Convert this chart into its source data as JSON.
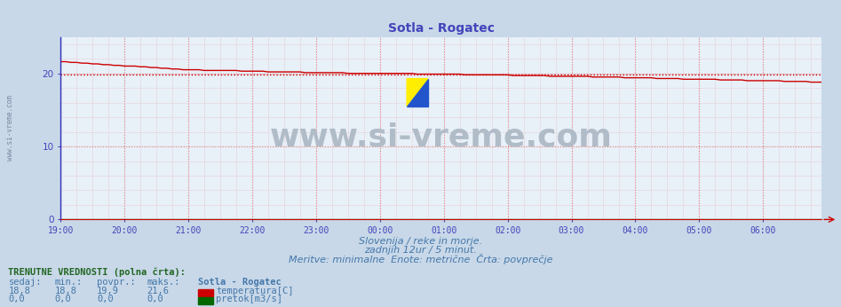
{
  "title": "Sotla - Rogatec",
  "title_color": "#4444bb",
  "bg_color": "#c8d8e8",
  "plot_bg_color": "#e8f0f8",
  "x_labels": [
    "19:00",
    "20:00",
    "21:00",
    "22:00",
    "23:00",
    "00:00",
    "01:00",
    "02:00",
    "03:00",
    "04:00",
    "05:00",
    "06:00"
  ],
  "y_ticks": [
    0,
    10,
    20
  ],
  "ylim_max": 25.0,
  "temp_avg": 19.9,
  "temp_color": "#cc0000",
  "pretok_color": "#006600",
  "watermark_text": "www.si-vreme.com",
  "watermark_color": "#b0bcc8",
  "left_label": "www.si-vreme.com",
  "left_label_color": "#7888a0",
  "subtitle1": "Slovenija / reke in morje.",
  "subtitle2": "zadnjih 12ur / 5 minut.",
  "subtitle3": "Meritve: minimalne  Enote: metrične  Črta: povprečje",
  "subtitle_color": "#4477aa",
  "table_header": "TRENUTNE VREDNOSTI (polna črta):",
  "table_cols": [
    "sedaj:",
    "min.:",
    "povpr.:",
    "maks.:",
    "Sotla - Rogatec"
  ],
  "table_color": "#4477aa",
  "table_header_color": "#226622",
  "row1_vals": [
    "18,8",
    "18,8",
    "19,9",
    "21,6"
  ],
  "row1_label": "temperatura[C]",
  "row1_color": "#cc0000",
  "row2_vals": [
    "0,0",
    "0,0",
    "0,0",
    "0,0"
  ],
  "row2_label": "pretok[m3/s]",
  "row2_color": "#006600",
  "n_points": 144,
  "temp_profile": [
    21.6,
    21.5,
    21.4,
    21.35,
    21.3,
    21.25,
    21.2,
    21.15,
    21.1,
    21.05,
    21.0,
    20.95,
    20.9,
    20.85,
    20.8,
    20.75,
    20.7,
    20.65,
    20.6,
    20.55,
    20.5,
    20.5,
    20.45,
    20.4,
    20.35,
    20.3,
    20.25,
    20.2,
    20.15,
    20.1,
    20.05,
    20.05,
    20.0,
    20.0,
    20.05,
    20.0,
    20.0,
    20.0,
    19.95,
    19.95,
    19.9,
    19.9,
    19.9,
    19.85,
    19.85,
    19.8,
    19.8,
    19.75,
    19.75,
    19.7,
    19.7,
    19.7,
    19.65,
    19.65,
    19.6,
    19.6,
    19.55,
    19.55,
    19.5,
    19.5,
    19.5,
    19.45,
    19.45,
    19.4,
    19.4,
    19.35,
    19.35,
    19.3,
    19.3,
    19.3,
    19.25,
    19.25,
    19.2,
    19.2,
    19.15,
    19.15,
    19.1,
    19.1,
    19.1,
    19.05,
    19.05,
    19.0,
    19.0,
    19.0,
    19.0,
    18.95,
    18.95,
    18.95,
    18.9,
    18.9,
    18.9,
    18.9,
    18.85,
    18.85,
    18.85,
    18.85,
    18.8,
    18.8,
    18.8,
    18.8,
    18.8,
    18.8,
    18.8,
    18.8,
    18.8,
    18.8,
    18.8,
    18.8,
    18.8,
    18.8,
    18.8,
    18.8,
    18.8,
    18.8,
    18.8,
    18.8,
    18.8,
    18.8,
    18.8,
    18.8,
    18.8,
    18.8,
    18.8,
    18.8,
    18.8,
    18.8,
    18.8,
    18.8,
    18.8,
    18.8,
    18.8,
    18.8,
    18.8,
    18.8,
    18.8,
    18.8,
    18.8,
    18.8,
    18.8,
    18.8,
    18.8,
    18.8,
    18.8,
    18.8
  ]
}
